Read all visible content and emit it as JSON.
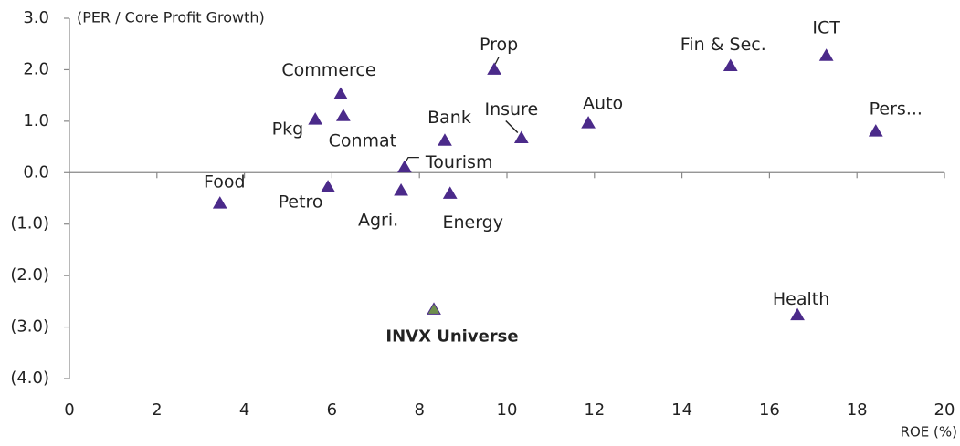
{
  "chart_data": {
    "type": "scatter",
    "y_label": "(PER / Core Profit Growth)",
    "x_label": "ROE (%)",
    "labels": [
      "Food",
      "Pkg",
      "Commerce",
      "Conmat",
      "Petro",
      "Agri.",
      "Tourism",
      "Bank",
      "Energy",
      "Prop",
      "Insure",
      "Auto",
      "Fin & Sec.",
      "ICT",
      "Pers...",
      "Health",
      "INVX Universe"
    ],
    "x": [
      3.44,
      5.62,
      6.2,
      6.26,
      5.91,
      7.58,
      7.66,
      8.58,
      8.7,
      9.71,
      10.33,
      11.86,
      15.11,
      17.3,
      18.43,
      16.64,
      8.33
    ],
    "values": [
      -0.6,
      1.03,
      1.52,
      1.1,
      -0.28,
      -0.35,
      0.1,
      0.62,
      -0.41,
      2.0,
      0.67,
      0.96,
      2.07,
      2.27,
      0.8,
      -2.77,
      -2.66
    ],
    "colors": [
      "#4b2a8a",
      "#4b2a8a",
      "#4b2a8a",
      "#4b2a8a",
      "#4b2a8a",
      "#4b2a8a",
      "#4b2a8a",
      "#4b2a8a",
      "#4b2a8a",
      "#4b2a8a",
      "#4b2a8a",
      "#4b2a8a",
      "#4b2a8a",
      "#4b2a8a",
      "#4b2a8a",
      "#4b2a8a",
      "#6f8f4e"
    ],
    "xlim": [
      0,
      20
    ],
    "xticks": [
      0,
      2,
      4,
      6,
      8,
      10,
      12,
      14,
      16,
      18,
      20
    ],
    "ylim": [
      -4,
      3
    ],
    "yticks": [
      {
        "value": 3,
        "label": "3.0"
      },
      {
        "value": 2,
        "label": "2.0"
      },
      {
        "value": 1,
        "label": "1.0"
      },
      {
        "value": 0,
        "label": "0.0"
      },
      {
        "value": -1,
        "label": "(1.0)"
      },
      {
        "value": -2,
        "label": "(2.0)"
      },
      {
        "value": -3,
        "label": "(3.0)"
      },
      {
        "value": -4,
        "label": "(4.0)"
      }
    ],
    "grid": false
  }
}
